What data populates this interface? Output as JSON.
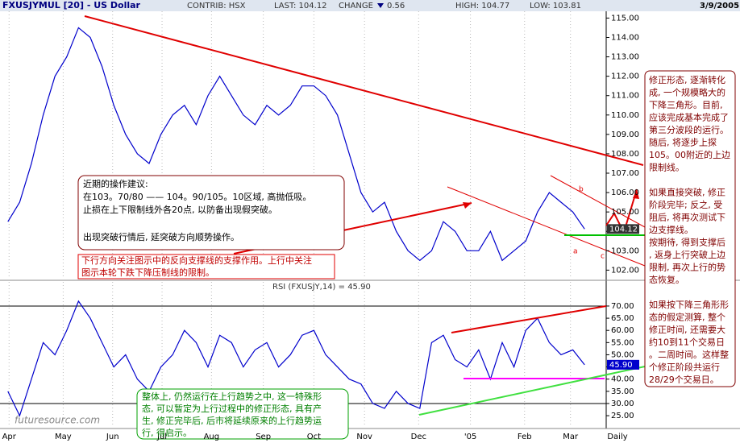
{
  "header": {
    "symbol": "FXUSJYMUL [20] - US Dollar",
    "contrib": "CONTRIB: HSX",
    "last": "LAST: 104.12",
    "change": "CHANGE",
    "change_value": "0.56",
    "high": "HIGH: 104.77",
    "low": "LOW: 103.81",
    "date": "3/9/2005"
  },
  "chart_data": [
    {
      "type": "line",
      "color": "#0000cc",
      "last_label": "104.12",
      "x": [
        0,
        1,
        2,
        3,
        4,
        5,
        6,
        7,
        8,
        9,
        10,
        11,
        12,
        13,
        14,
        15,
        16,
        17,
        18,
        19,
        20,
        21,
        22,
        23,
        24,
        25,
        26,
        27,
        28,
        29,
        30,
        31,
        32,
        33,
        34,
        35,
        36,
        37,
        38,
        39,
        40,
        41,
        42,
        43,
        44,
        45,
        46,
        47,
        48,
        49
      ],
      "values": [
        104.5,
        105.5,
        107.5,
        110,
        112,
        113,
        114.5,
        114,
        112.5,
        110.5,
        109,
        108,
        107.5,
        109,
        110,
        110.5,
        109.5,
        111,
        112,
        111,
        110,
        109.5,
        110.5,
        110,
        110.5,
        111.5,
        111.5,
        111,
        110,
        108,
        106,
        105,
        105.5,
        104,
        103,
        102.5,
        103,
        104.5,
        104,
        103,
        103,
        104,
        102.5,
        103,
        103.5,
        105,
        106,
        105.5,
        105,
        104.12
      ],
      "xlim": [
        -0.67,
        49.67
      ],
      "ylim": [
        101.6,
        115.35
      ],
      "yticks": [
        {
          "value": 102,
          "label": "102.00"
        },
        {
          "value": 103,
          "label": "103.00"
        },
        {
          "value": 104,
          "label": "104.00"
        },
        {
          "value": 105,
          "label": "105.00"
        },
        {
          "value": 106,
          "label": "106.00"
        },
        {
          "value": 107,
          "label": "107.00"
        },
        {
          "value": 108,
          "label": "108.00"
        },
        {
          "value": 109,
          "label": "109.00"
        },
        {
          "value": 110,
          "label": "110.00"
        },
        {
          "value": 111,
          "label": "111.00"
        },
        {
          "value": 112,
          "label": "112.00"
        },
        {
          "value": 113,
          "label": "113.00"
        },
        {
          "value": 114,
          "label": "114.00"
        },
        {
          "value": 115,
          "label": "115.00"
        }
      ],
      "annotations": [
        "a",
        "b",
        "c"
      ]
    },
    {
      "type": "line",
      "title": "RSI (FXUSJY,14) = 45.90",
      "color": "#0000cc",
      "last_label": "45.90",
      "x": [
        0,
        1,
        2,
        3,
        4,
        5,
        6,
        7,
        8,
        9,
        10,
        11,
        12,
        13,
        14,
        15,
        16,
        17,
        18,
        19,
        20,
        21,
        22,
        23,
        24,
        25,
        26,
        27,
        28,
        29,
        30,
        31,
        32,
        33,
        34,
        35,
        36,
        37,
        38,
        39,
        40,
        41,
        42,
        43,
        44,
        45,
        46,
        47,
        48,
        49
      ],
      "values": [
        35,
        25,
        40,
        55,
        50,
        60,
        72,
        65,
        55,
        45,
        50,
        40,
        35,
        45,
        50,
        60,
        55,
        45,
        58,
        55,
        45,
        52,
        55,
        45,
        50,
        58,
        60,
        50,
        45,
        40,
        38,
        30,
        28,
        35,
        30,
        28,
        55,
        58,
        48,
        45,
        52,
        40,
        55,
        45,
        60,
        65,
        55,
        50,
        52,
        45.9
      ],
      "xlim": [
        -0.67,
        49.67
      ],
      "ylim": [
        20.4,
        79.9
      ],
      "yticks": [
        {
          "value": 25,
          "label": "25.00"
        },
        {
          "value": 30,
          "label": "30.00"
        },
        {
          "value": 35,
          "label": "35.00"
        },
        {
          "value": 40,
          "label": "40.00"
        },
        {
          "value": 45,
          "label": "45.00"
        },
        {
          "value": 50,
          "label": "50.00"
        },
        {
          "value": 55,
          "label": "55.00"
        },
        {
          "value": 60,
          "label": "60.00"
        },
        {
          "value": 65,
          "label": "65.00"
        },
        {
          "value": 70,
          "label": "70.00"
        }
      ],
      "xticks": [
        {
          "value": 0.1,
          "label": "Apr"
        },
        {
          "value": 4.7,
          "label": "May"
        },
        {
          "value": 8.9,
          "label": "Jun"
        },
        {
          "value": 13.1,
          "label": "Jul"
        },
        {
          "value": 17.3,
          "label": "Aug"
        },
        {
          "value": 21.7,
          "label": "Sep"
        },
        {
          "value": 26,
          "label": "Oct"
        },
        {
          "value": 30.3,
          "label": "Nov"
        },
        {
          "value": 34.9,
          "label": "Dec"
        },
        {
          "value": 39.3,
          "label": "'05"
        },
        {
          "value": 43.9,
          "label": "Feb"
        },
        {
          "value": 47.8,
          "label": "Mar"
        }
      ],
      "x_label": "Daily"
    }
  ],
  "notes": {
    "advice": [
      "近期的操作建议:",
      "在103。70/80 —— 104。90/105。10区域, 高抛低吸。",
      "止损在上下限制线外各20点, 以防备出现假突破。",
      "出现突破行情后, 延突破方向顺势操作。"
    ],
    "support": [
      "下行方向关注图示中的反向支撑线的支撑作用。上行中关注",
      "图示本轮下跌下降压制线的限制。"
    ],
    "trend": [
      "整体上, 仍然运行在上行趋势之中, 这一特殊形",
      "态, 可以暂定为上行过程中的修正形态, 具有产",
      "生, 修正完毕后, 后市将延续原来的上行趋势运",
      "行, 得启示。"
    ],
    "side": [
      "修正形态, 逐渐转化",
      "成, 一个规模略大的",
      "下降三角形。目前,",
      "应该完成基本完成了",
      "第三分波段的运行。",
      "随后, 将逐步上探",
      "105。00附近的上边",
      "限制线。",
      "",
      "如果直接突破, 修正",
      "阶段完毕; 反之, 受",
      "阻后, 将再次测试下",
      "边支撑线。",
      "按期待, 得到支撑后",
      ", 返身上行突破上边",
      "限制, 再次上行的势",
      "态恢复。",
      "",
      "如果按下降三角形形",
      "态的假定测算, 整个",
      "修正时间, 还需要大",
      "约10到11个交易日",
      "。二周时间。这样整",
      "个修正阶段共运行",
      "28/29个交易日。"
    ]
  },
  "watermark": "futuresource.com"
}
